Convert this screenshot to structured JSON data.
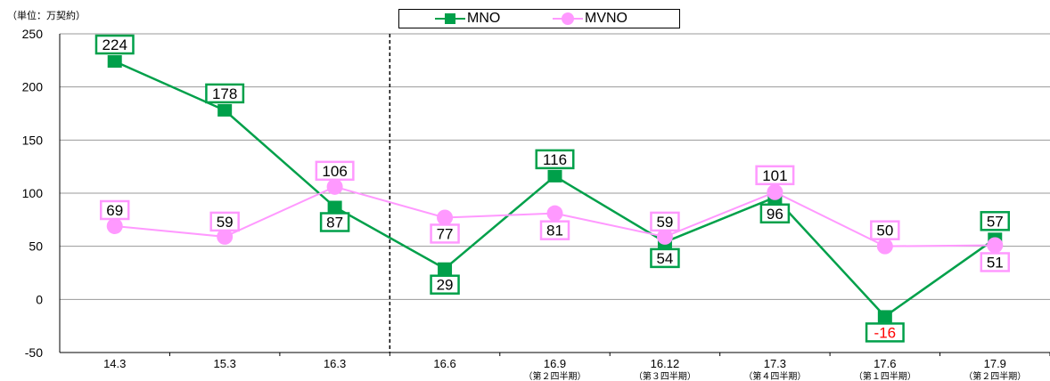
{
  "unit_label": "（単位：万契約）",
  "legend": {
    "mno": "MNO",
    "mvno": "MVNO"
  },
  "colors": {
    "mno": "#00A04A",
    "mvno": "#FF99FF",
    "negative_label": "#FF0000"
  },
  "chart_data": {
    "type": "line",
    "categories": [
      "14.3",
      "15.3",
      "16.3",
      "16.6",
      "16.9",
      "16.12",
      "17.3",
      "17.6",
      "17.9"
    ],
    "category_sublabels": [
      "",
      "",
      "",
      "",
      "（第２四半期）",
      "（第３四半期）",
      "（第４四半期）",
      "（第１四半期）",
      "（第２四半期）"
    ],
    "series": [
      {
        "name": "MNO",
        "values": [
          224,
          178,
          87,
          29,
          116,
          54,
          96,
          -16,
          57
        ]
      },
      {
        "name": "MVNO",
        "values": [
          69,
          59,
          106,
          77,
          81,
          59,
          101,
          50,
          51
        ]
      }
    ],
    "ylim": [
      -50,
      250
    ],
    "yticks": [
      -50,
      0,
      50,
      100,
      150,
      200,
      250
    ],
    "grid": true,
    "legend_position": "top-center",
    "divider_after_category": "16.3"
  }
}
